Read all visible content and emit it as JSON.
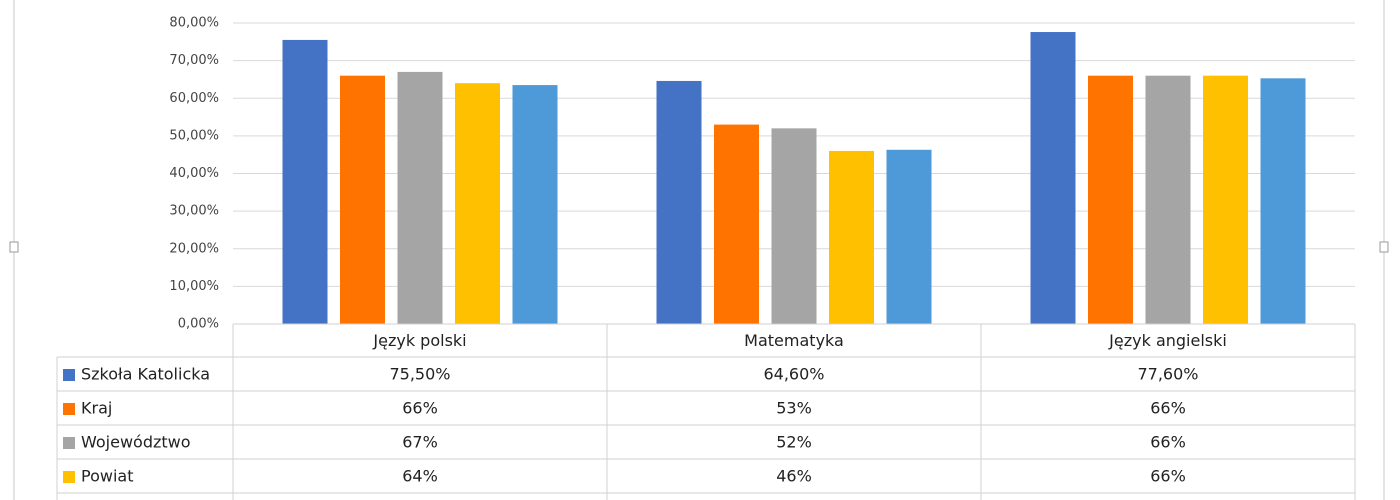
{
  "chart_data": {
    "type": "bar",
    "categories": [
      "Język polski",
      "Matematyka",
      "Język angielski"
    ],
    "series": [
      {
        "name": "Szkoła Katolicka",
        "color": "#4472c4",
        "values": [
          75.5,
          64.6,
          77.6
        ],
        "value_labels": [
          "75,50%",
          "64,60%",
          "77,60%"
        ]
      },
      {
        "name": "Kraj",
        "color": "#ff7400",
        "values": [
          66,
          53,
          66
        ],
        "value_labels": [
          "66%",
          "53%",
          "66%"
        ]
      },
      {
        "name": "Województwo",
        "color": "#a5a5a5",
        "values": [
          67,
          52,
          66
        ],
        "value_labels": [
          "67%",
          "52%",
          "66%"
        ]
      },
      {
        "name": "Powiat",
        "color": "#ffc000",
        "values": [
          64,
          46,
          66
        ],
        "value_labels": [
          "64%",
          "46%",
          "66%"
        ]
      },
      {
        "color": "#4e9ad8",
        "values": [
          63.5,
          46.3,
          65.3
        ]
      }
    ],
    "ylim": [
      0,
      80
    ],
    "yticks": [
      {
        "value": 0,
        "label": "0,00%"
      },
      {
        "value": 10,
        "label": "10,00%"
      },
      {
        "value": 20,
        "label": "20,00%"
      },
      {
        "value": 30,
        "label": "30,00%"
      },
      {
        "value": 40,
        "label": "40,00%"
      },
      {
        "value": 50,
        "label": "50,00%"
      },
      {
        "value": 60,
        "label": "60,00%"
      },
      {
        "value": 70,
        "label": "70,00%"
      },
      {
        "value": 80,
        "label": "80,00%"
      }
    ],
    "grid": true
  }
}
